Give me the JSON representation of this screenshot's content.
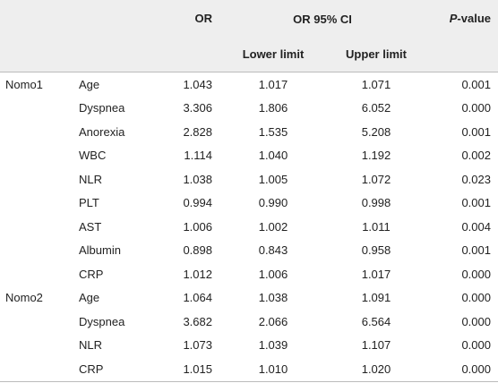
{
  "header": {
    "or": "OR",
    "ci": "OR 95% CI",
    "lower": "Lower limit",
    "upper": "Upper limit",
    "p_italic": "P",
    "p_rest": "-value"
  },
  "groups": [
    {
      "name": "Nomo1",
      "rows": [
        [
          "Age",
          "1.043",
          "1.017",
          "1.071",
          "0.001"
        ],
        [
          "Dyspnea",
          "3.306",
          "1.806",
          "6.052",
          "0.000"
        ],
        [
          "Anorexia",
          "2.828",
          "1.535",
          "5.208",
          "0.001"
        ],
        [
          "WBC",
          "1.114",
          "1.040",
          "1.192",
          "0.002"
        ],
        [
          "NLR",
          "1.038",
          "1.005",
          "1.072",
          "0.023"
        ],
        [
          "PLT",
          "0.994",
          "0.990",
          "0.998",
          "0.001"
        ],
        [
          "AST",
          "1.006",
          "1.002",
          "1.011",
          "0.004"
        ],
        [
          "Albumin",
          "0.898",
          "0.843",
          "0.958",
          "0.001"
        ],
        [
          "CRP",
          "1.012",
          "1.006",
          "1.017",
          "0.000"
        ]
      ]
    },
    {
      "name": "Nomo2",
      "rows": [
        [
          "Age",
          "1.064",
          "1.038",
          "1.091",
          "0.000"
        ],
        [
          "Dyspnea",
          "3.682",
          "2.066",
          "6.564",
          "0.000"
        ],
        [
          "NLR",
          "1.073",
          "1.039",
          "1.107",
          "0.000"
        ],
        [
          "CRP",
          "1.015",
          "1.010",
          "1.020",
          "0.000"
        ]
      ]
    }
  ]
}
